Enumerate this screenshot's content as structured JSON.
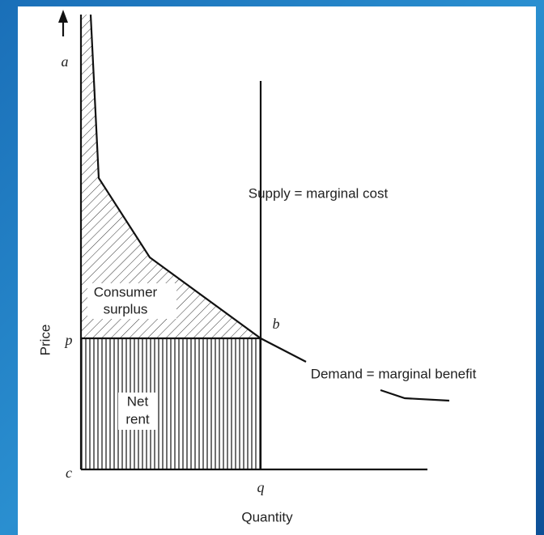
{
  "labels": {
    "a": "a",
    "p": "p",
    "c": "c",
    "q": "q",
    "b": "b",
    "price": "Price",
    "quantity": "Quantity",
    "supply": "Supply = marginal cost",
    "demand": "Demand = marginal benefit",
    "consumer_surplus": [
      "Consumer",
      "surplus"
    ],
    "net_rent": [
      "Net",
      "rent"
    ]
  }
}
